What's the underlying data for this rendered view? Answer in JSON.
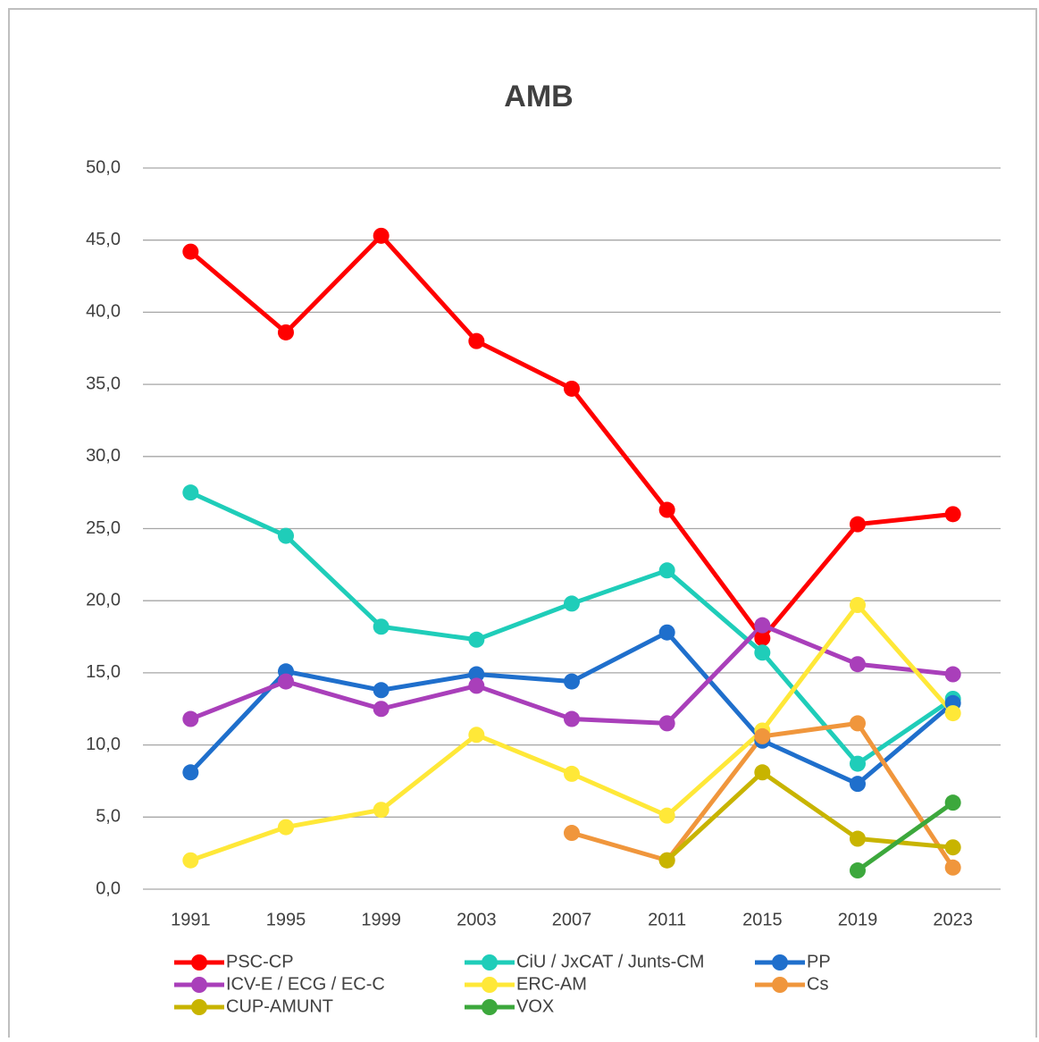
{
  "chart_data": {
    "type": "line",
    "title": "AMB",
    "categories": [
      "1991",
      "1995",
      "1999",
      "2003",
      "2007",
      "2011",
      "2015",
      "2019",
      "2023"
    ],
    "series": [
      {
        "name": "PSC-CP",
        "color": "#ff0000",
        "values": [
          44.2,
          38.6,
          45.3,
          38.0,
          34.7,
          26.3,
          17.4,
          25.3,
          26.0
        ]
      },
      {
        "name": "CiU / JxCAT / Junts-CM",
        "color": "#1fcdb9",
        "values": [
          27.5,
          24.5,
          18.2,
          17.3,
          19.8,
          22.1,
          16.4,
          8.7,
          13.2
        ]
      },
      {
        "name": "PP",
        "color": "#1f6fcc",
        "values": [
          8.1,
          15.1,
          13.8,
          14.9,
          14.4,
          17.8,
          10.3,
          7.3,
          12.9
        ]
      },
      {
        "name": "ICV-E  / ECG / EC-C",
        "color": "#a93fba",
        "values": [
          11.8,
          14.4,
          12.5,
          14.1,
          11.8,
          11.5,
          18.3,
          15.6,
          14.9
        ]
      },
      {
        "name": "ERC-AM",
        "color": "#ffe838",
        "values": [
          2.0,
          4.3,
          5.5,
          10.7,
          8.0,
          5.1,
          11.0,
          19.7,
          12.2
        ]
      },
      {
        "name": "Cs",
        "color": "#f0963c",
        "values": [
          null,
          null,
          null,
          null,
          3.9,
          2.0,
          10.6,
          11.5,
          1.5
        ]
      },
      {
        "name": "CUP-AMUNT",
        "color": "#c8b400",
        "values": [
          null,
          null,
          null,
          null,
          null,
          2.0,
          8.1,
          3.5,
          2.9
        ]
      },
      {
        "name": "VOX",
        "color": "#3ca83c",
        "values": [
          null,
          null,
          null,
          null,
          null,
          null,
          null,
          1.3,
          6.0
        ]
      }
    ],
    "ylim": [
      0,
      50
    ],
    "yticks": [
      {
        "value": 0,
        "label": "0,0"
      },
      {
        "value": 5,
        "label": "5,0"
      },
      {
        "value": 10,
        "label": "10,0"
      },
      {
        "value": 15,
        "label": "15,0"
      },
      {
        "value": 20,
        "label": "20,0"
      },
      {
        "value": 25,
        "label": "25,0"
      },
      {
        "value": 30,
        "label": "30,0"
      },
      {
        "value": 35,
        "label": "35,0"
      },
      {
        "value": 40,
        "label": "40,0"
      },
      {
        "value": 45,
        "label": "45,0"
      },
      {
        "value": 50,
        "label": "50,0"
      }
    ],
    "grid": true
  }
}
